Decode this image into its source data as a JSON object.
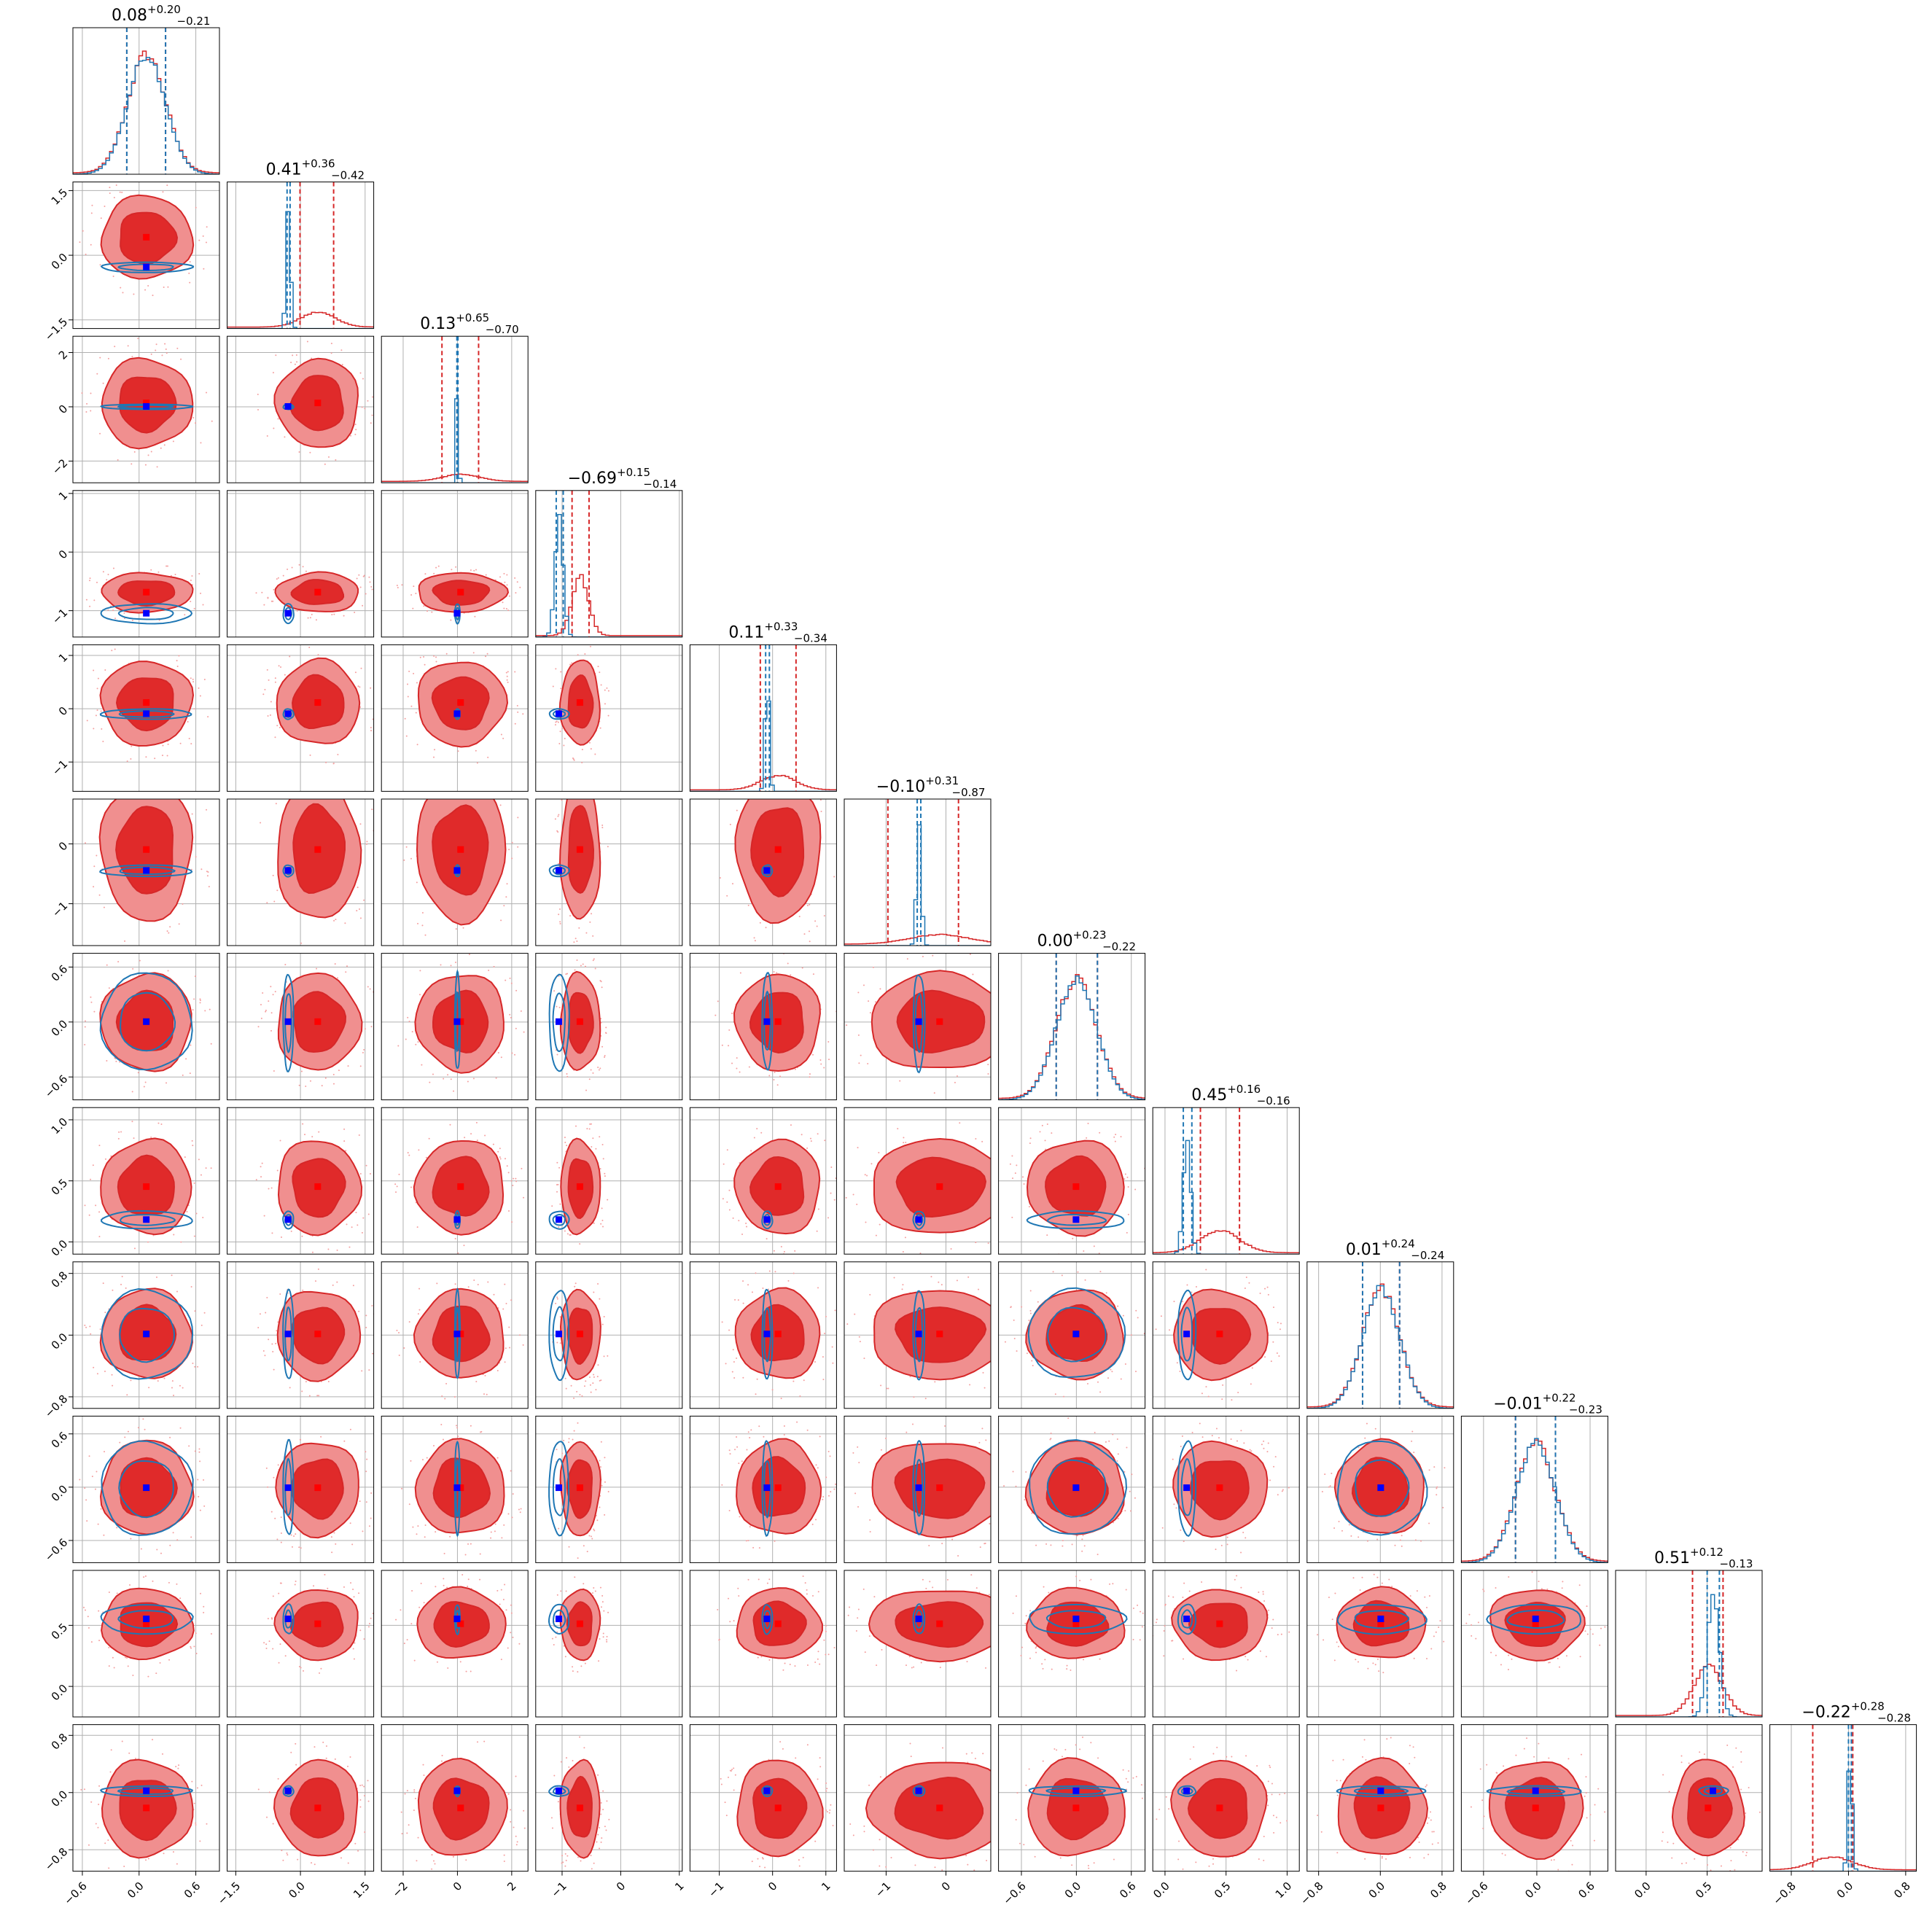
{
  "chart_data": {
    "type": "corner",
    "n_params": 12,
    "grid": true,
    "colors": {
      "primary": "#d62728",
      "primary_fill_dark": "#e02a2a",
      "primary_fill_light": "#f08f8f",
      "secondary": "#1f77b4",
      "truth_primary": "#ff0000",
      "truth_secondary": "#0000ff",
      "grid": "#b0b0b0"
    },
    "series": [
      {
        "color": "#d62728",
        "means": [
          0.08,
          0.41,
          0.13,
          -0.69,
          0.11,
          -0.1,
          0.0,
          0.45,
          0.01,
          -0.01,
          0.51,
          -0.22
        ],
        "sigmas": [
          0.2,
          0.4,
          0.68,
          0.14,
          0.33,
          0.5,
          0.22,
          0.16,
          0.24,
          0.22,
          0.12,
          0.28
        ]
      },
      {
        "color": "#1f77b4",
        "means": [
          0.08,
          -0.28,
          0.0,
          -1.05,
          -0.1,
          -0.45,
          0.0,
          0.18,
          0.01,
          -0.01,
          0.55,
          0.02
        ],
        "sigmas": [
          0.2,
          0.05,
          0.04,
          0.07,
          0.04,
          0.04,
          0.22,
          0.03,
          0.24,
          0.22,
          0.05,
          0.03
        ]
      }
    ],
    "titles": [
      {
        "value": "0.08",
        "plus": "+0.20",
        "minus": "−0.21"
      },
      {
        "value": "0.41",
        "plus": "+0.36",
        "minus": "−0.42"
      },
      {
        "value": "0.13",
        "plus": "+0.65",
        "minus": "−0.70"
      },
      {
        "value": "−0.69",
        "plus": "+0.15",
        "minus": "−0.14"
      },
      {
        "value": "0.11",
        "plus": "+0.33",
        "minus": "−0.34"
      },
      {
        "value": "−0.10",
        "plus": "+0.31",
        "minus": "−0.87"
      },
      {
        "value": "0.00",
        "plus": "+0.23",
        "minus": "−0.22"
      },
      {
        "value": "0.45",
        "plus": "+0.16",
        "minus": "−0.16"
      },
      {
        "value": "0.01",
        "plus": "+0.24",
        "minus": "−0.24"
      },
      {
        "value": "−0.01",
        "plus": "+0.22",
        "minus": "−0.23"
      },
      {
        "value": "0.51",
        "plus": "+0.12",
        "minus": "−0.13"
      },
      {
        "value": "−0.22",
        "plus": "+0.28",
        "minus": "−0.28"
      }
    ],
    "quantiles_primary": [
      [
        -0.13,
        0.28
      ],
      [
        -0.01,
        0.77
      ],
      [
        -0.57,
        0.78
      ],
      [
        -0.83,
        -0.54
      ],
      [
        -0.23,
        0.44
      ],
      [
        -0.97,
        0.21
      ],
      [
        -0.22,
        0.23
      ],
      [
        0.29,
        0.61
      ],
      [
        -0.23,
        0.25
      ],
      [
        -0.24,
        0.21
      ],
      [
        0.38,
        0.63
      ],
      [
        -0.5,
        0.06
      ]
    ],
    "quantiles_secondary": [
      [
        -0.13,
        0.28
      ],
      [
        -0.31,
        -0.24
      ],
      [
        -0.02,
        0.02
      ],
      [
        -1.1,
        -0.98
      ],
      [
        -0.13,
        -0.06
      ],
      [
        -0.48,
        -0.42
      ],
      [
        -0.22,
        0.23
      ],
      [
        0.15,
        0.22
      ],
      [
        -0.23,
        0.25
      ],
      [
        -0.24,
        0.21
      ],
      [
        0.5,
        0.6
      ],
      [
        0.0,
        0.04
      ]
    ],
    "ranges": [
      [
        -0.7,
        0.85
      ],
      [
        -1.7,
        1.7
      ],
      [
        -2.8,
        2.6
      ],
      [
        -1.45,
        1.05
      ],
      [
        -1.55,
        1.2
      ],
      [
        -1.7,
        0.75
      ],
      [
        -0.85,
        0.75
      ],
      [
        -0.1,
        1.1
      ],
      [
        -0.95,
        0.95
      ],
      [
        -0.85,
        0.8
      ],
      [
        -0.25,
        0.95
      ],
      [
        -1.1,
        0.95
      ]
    ],
    "x_ticks": [
      [
        "−0.6",
        "0.0",
        "0.6"
      ],
      [
        "−1.5",
        "0.0",
        "1.5"
      ],
      [
        "−2",
        "0",
        "2"
      ],
      [
        "−1",
        "0",
        "1"
      ],
      [
        "−1",
        "0",
        "1"
      ],
      [
        "−1",
        "0"
      ],
      [
        "−0.6",
        "0.0",
        "0.6"
      ],
      [
        "0.0",
        "0.5",
        "1.0"
      ],
      [
        "−0.8",
        "0.0",
        "0.8"
      ],
      [
        "−0.6",
        "0.0",
        "0.6"
      ],
      [
        "0.0",
        "0.5"
      ],
      [
        "−0.8",
        "0.0",
        "0.8"
      ]
    ],
    "y_ticks": [
      [],
      [
        "1.5",
        "0.0",
        "−1.5"
      ],
      [
        "2",
        "0",
        "−2"
      ],
      [
        "1",
        "0",
        "−1"
      ],
      [
        "1",
        "0",
        "−1"
      ],
      [
        "0",
        "−1"
      ],
      [
        "0.6",
        "0.0",
        "−0.6"
      ],
      [
        "1.0",
        "0.5",
        "0.0"
      ],
      [
        "0.8",
        "0.0",
        "−0.8"
      ],
      [
        "0.6",
        "0.0",
        "−0.6"
      ],
      [
        "0.5",
        "0.0"
      ],
      [
        "0.8",
        "0.0",
        "−0.8"
      ]
    ],
    "x_tick_values": [
      [
        -0.6,
        0.0,
        0.6
      ],
      [
        -1.5,
        0.0,
        1.5
      ],
      [
        -2,
        0,
        2
      ],
      [
        -1,
        0,
        1
      ],
      [
        -1,
        0,
        1
      ],
      [
        -1,
        0
      ],
      [
        -0.6,
        0.0,
        0.6
      ],
      [
        0.0,
        0.5,
        1.0
      ],
      [
        -0.8,
        0.0,
        0.8
      ],
      [
        -0.6,
        0.0,
        0.6
      ],
      [
        0.0,
        0.5
      ],
      [
        -0.8,
        0.0,
        0.8
      ]
    ]
  }
}
